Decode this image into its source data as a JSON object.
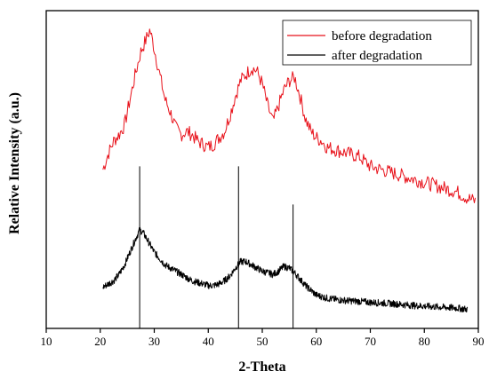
{
  "chart_data": {
    "type": "line",
    "title": "",
    "xlabel": "2-Theta",
    "ylabel": "Relative Intensity (a.u.)",
    "xlim": [
      10,
      90
    ],
    "ylim": [
      0,
      100
    ],
    "xticks": [
      10,
      20,
      30,
      40,
      50,
      60,
      70,
      80,
      90
    ],
    "yticks_shown": false,
    "grid": false,
    "legend_position": "top-right",
    "series": [
      {
        "name": "before degradation",
        "color": "#e8111a",
        "x": [
          20.5,
          21.5,
          22.5,
          23.5,
          24.5,
          25.5,
          26.5,
          27.5,
          28.5,
          29.2,
          30,
          31,
          32,
          33,
          34,
          35,
          36,
          37,
          38,
          39,
          40,
          41,
          42,
          43,
          44,
          45,
          46,
          47,
          48,
          49,
          50,
          51,
          52,
          53,
          54,
          55,
          56,
          57,
          58,
          59,
          60,
          61,
          62,
          64,
          66,
          68,
          70,
          72,
          74,
          76,
          78,
          80,
          82,
          84,
          86,
          88,
          89.5
        ],
        "y": [
          50,
          55,
          59,
          61,
          64,
          72,
          80,
          87,
          91,
          94,
          88,
          80,
          72,
          68,
          63,
          61,
          62,
          61,
          59,
          58,
          57,
          58,
          60,
          62,
          67,
          73,
          78,
          80,
          82,
          81,
          77,
          70,
          65,
          70,
          75,
          78,
          79,
          73,
          66,
          62,
          60,
          59,
          57,
          56,
          55,
          54,
          51,
          50,
          49,
          48,
          47,
          46,
          45,
          44,
          43,
          41,
          40
        ]
      },
      {
        "name": "after degradation",
        "color": "#000000",
        "x": [
          20.5,
          21.5,
          22.5,
          23.5,
          24.5,
          25.5,
          26.5,
          27.3,
          28,
          29,
          30,
          31,
          32,
          33,
          34,
          35,
          36,
          37,
          38,
          39,
          40,
          41,
          42,
          43,
          44,
          45,
          46,
          47,
          48,
          49,
          50,
          51,
          52,
          53,
          54,
          55,
          56,
          57,
          58,
          60,
          62,
          64,
          66,
          68,
          70,
          72,
          74,
          76,
          78,
          80,
          82,
          84,
          86,
          88
        ],
        "y": [
          13,
          14,
          15,
          17,
          20,
          24,
          28,
          31,
          30,
          27,
          24,
          22,
          20,
          19,
          18,
          17,
          16,
          15,
          14.5,
          14,
          13.5,
          13.5,
          14,
          15,
          16.5,
          19,
          21,
          21,
          20,
          19,
          18,
          17.5,
          17,
          18,
          19.5,
          19,
          17.5,
          15.5,
          13.5,
          10.5,
          9.5,
          9,
          8.7,
          8.5,
          8.2,
          8,
          7.8,
          7.5,
          7.2,
          7,
          6.8,
          6.6,
          6.4,
          6
        ]
      }
    ],
    "reference_lines": [
      {
        "x": 27.3,
        "y_top": 51
      },
      {
        "x": 45.6,
        "y_top": 51
      },
      {
        "x": 55.7,
        "y_top": 39
      }
    ]
  }
}
